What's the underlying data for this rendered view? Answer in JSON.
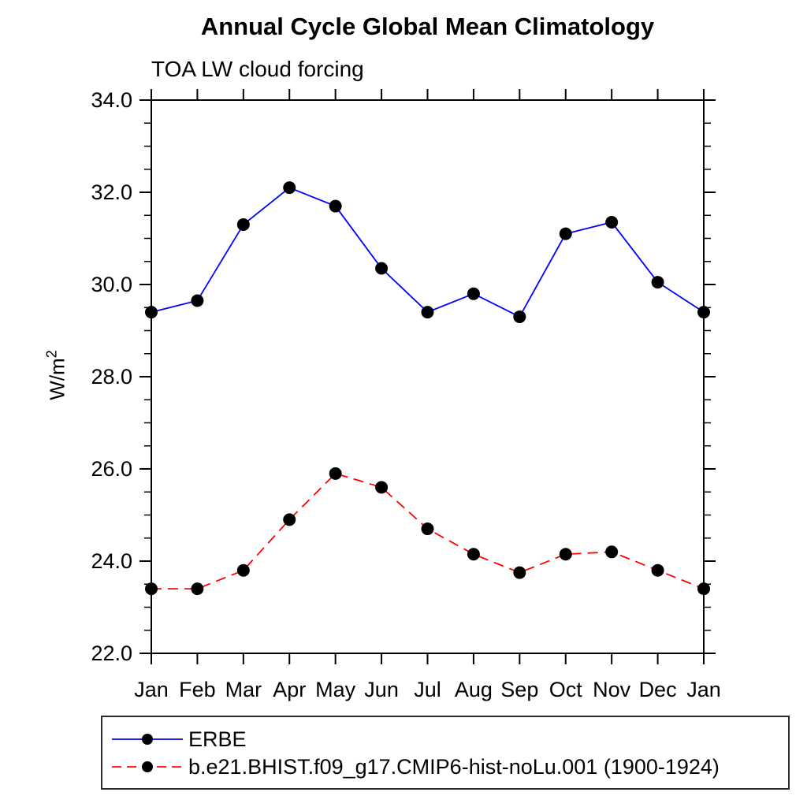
{
  "chart_data": {
    "type": "line",
    "title": "Annual Cycle Global Mean Climatology",
    "subtitle": "TOA LW cloud forcing",
    "ylabel": "W/m",
    "ylabel_superscript": "2",
    "x_categories": [
      "Jan",
      "Feb",
      "Mar",
      "Apr",
      "May",
      "Jun",
      "Jul",
      "Aug",
      "Sep",
      "Oct",
      "Nov",
      "Dec",
      "Jan"
    ],
    "ylim": [
      22.0,
      34.0
    ],
    "ytick_major_values": [
      22,
      24,
      26,
      28,
      30,
      32,
      34
    ],
    "ytick_labels": [
      "22.0",
      "24.0",
      "26.0",
      "28.0",
      "30.0",
      "32.0",
      "34.0"
    ],
    "ytick_minor_step": 0.5,
    "grid": false,
    "legend_position": "bottom-left-box",
    "marker_color": "#000000",
    "axis_color": "#000000",
    "background_color": "#ffffff",
    "series": [
      {
        "name": "ERBE",
        "color": "#0000ff",
        "line_style": "solid",
        "marker": "filled-circle",
        "values": [
          29.4,
          29.65,
          31.3,
          32.1,
          31.7,
          30.35,
          29.4,
          29.8,
          29.3,
          31.1,
          31.35,
          30.05,
          29.4
        ]
      },
      {
        "name": "b.e21.BHIST.f09_g17.CMIP6-hist-noLu.001 (1900-1924)",
        "color": "#ff0000",
        "line_style": "dashed",
        "marker": "filled-circle",
        "values": [
          23.4,
          23.4,
          23.8,
          24.9,
          25.9,
          25.6,
          24.7,
          24.15,
          23.75,
          24.15,
          24.2,
          23.8,
          23.4
        ]
      }
    ]
  }
}
